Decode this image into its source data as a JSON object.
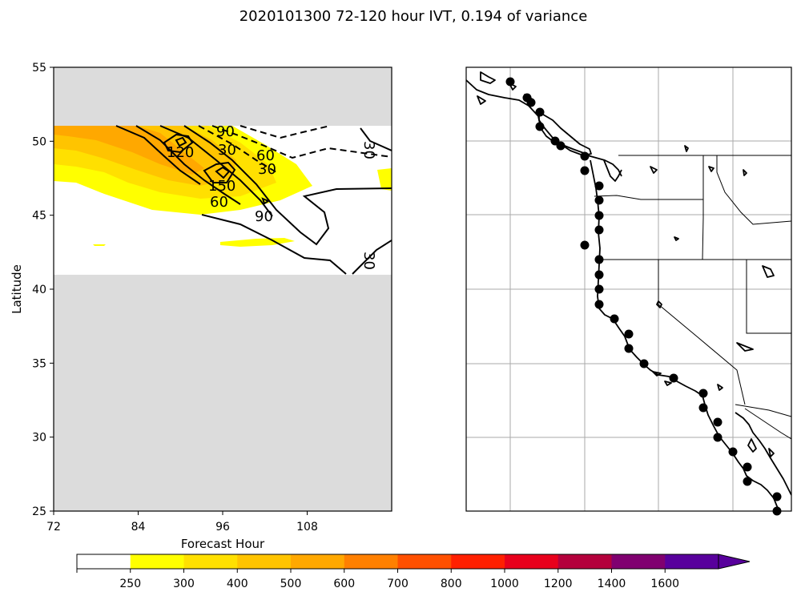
{
  "figure": {
    "title": "2020101300 72-120 hour IVT, 0.194 of variance"
  },
  "chart_data": [
    {
      "type": "heatmap",
      "xlabel": "Forecast Hour",
      "ylabel": "Latitude",
      "xlim": [
        72,
        120
      ],
      "ylim": [
        25,
        55
      ],
      "xticks": [
        "72",
        "84",
        "96",
        "108"
      ],
      "yticks": [
        "25",
        "30",
        "35",
        "40",
        "45",
        "50",
        "55"
      ],
      "missing_color": "#dcdcdc",
      "valid_lat_range": [
        41,
        51
      ],
      "filled_contours": [
        {
          "level": "250-300",
          "color": "#ffff00"
        },
        {
          "level": "300-400",
          "color": "#ffe000"
        },
        {
          "level": "400-500",
          "color": "#ffc400"
        },
        {
          "level": "500-600",
          "color": "#ffa800"
        }
      ],
      "contour_labels": [
        "90",
        "60",
        "30",
        "120",
        "150",
        "60",
        "90",
        "30",
        "30",
        "30"
      ]
    },
    {
      "type": "map",
      "region": "US West Coast",
      "gridlines": true,
      "point_count": 32
    },
    {
      "type": "colorbar",
      "tick_labels": [
        "250",
        "300",
        "400",
        "500",
        "600",
        "700",
        "800",
        "1000",
        "1200",
        "1400",
        "1600"
      ],
      "colors": [
        "#ffffff",
        "#ffff00",
        "#ffe000",
        "#ffc400",
        "#ffa800",
        "#ff8000",
        "#ff5000",
        "#ff2000",
        "#e8001c",
        "#b4003c",
        "#800070",
        "#58009c"
      ],
      "extend": "max"
    }
  ]
}
